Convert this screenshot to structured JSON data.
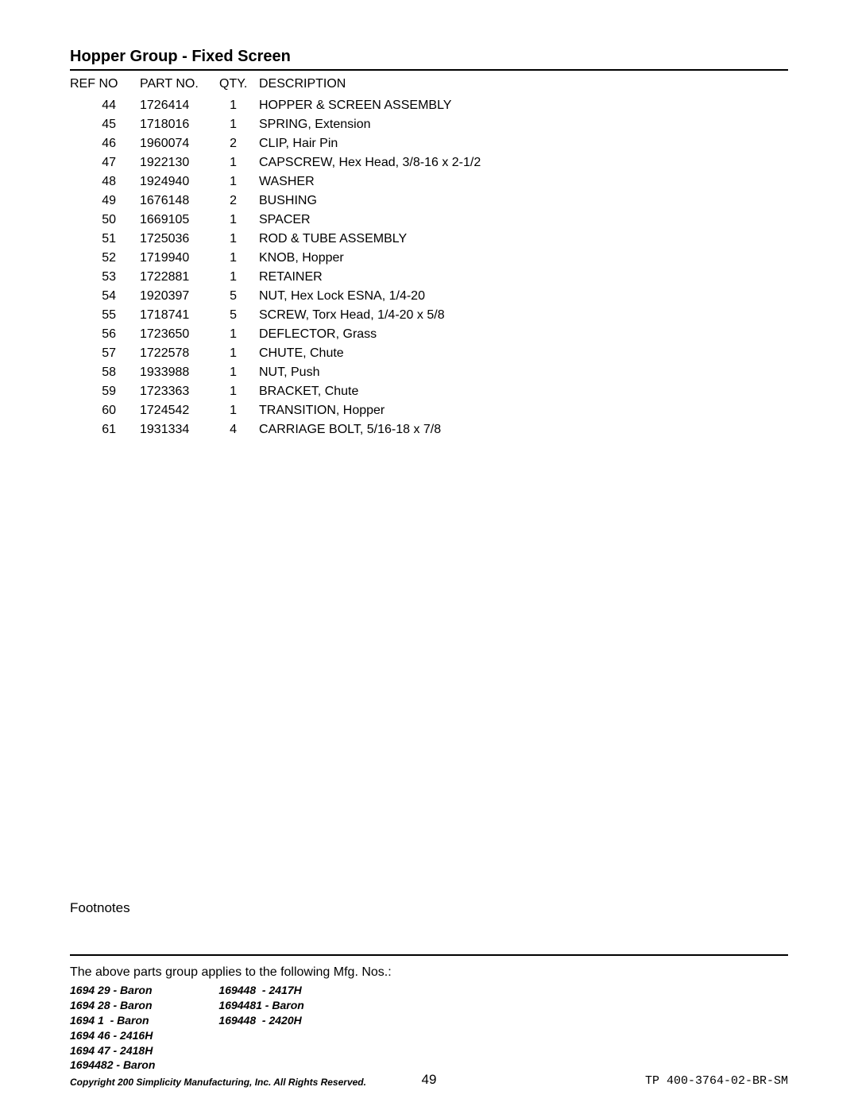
{
  "title": "Hopper Group - Fixed Screen",
  "headers": {
    "ref": "REF NO",
    "part": "PART NO.",
    "qty": "QTY.",
    "desc": "DESCRIPTION"
  },
  "rows": [
    {
      "ref": "44",
      "part": "1726414",
      "qty": "1",
      "desc": "HOPPER & SCREEN ASSEMBLY"
    },
    {
      "ref": "45",
      "part": "1718016",
      "qty": "1",
      "desc": "SPRING, Extension"
    },
    {
      "ref": "46",
      "part": "1960074",
      "qty": "2",
      "desc": "CLIP, Hair Pin"
    },
    {
      "ref": "47",
      "part": "1922130",
      "qty": "1",
      "desc": "CAPSCREW, Hex Head, 3/8-16 x 2-1/2"
    },
    {
      "ref": "48",
      "part": "1924940",
      "qty": "1",
      "desc": "WASHER"
    },
    {
      "ref": "49",
      "part": "1676148",
      "qty": "2",
      "desc": "BUSHING"
    },
    {
      "ref": "50",
      "part": "1669105",
      "qty": "1",
      "desc": "SPACER"
    },
    {
      "ref": "51",
      "part": "1725036",
      "qty": "1",
      "desc": "ROD & TUBE ASSEMBLY"
    },
    {
      "ref": "52",
      "part": "1719940",
      "qty": "1",
      "desc": "KNOB, Hopper"
    },
    {
      "ref": "53",
      "part": "1722881",
      "qty": "1",
      "desc": "RETAINER"
    },
    {
      "ref": "54",
      "part": "1920397",
      "qty": "5",
      "desc": "NUT, Hex Lock ESNA, 1/4-20"
    },
    {
      "ref": "55",
      "part": "1718741",
      "qty": "5",
      "desc": "SCREW, Torx Head, 1/4-20 x 5/8"
    },
    {
      "ref": "56",
      "part": "1723650",
      "qty": "1",
      "desc": "DEFLECTOR, Grass"
    },
    {
      "ref": "57",
      "part": "1722578",
      "qty": "1",
      "desc": "CHUTE, Chute"
    },
    {
      "ref": "58",
      "part": "1933988",
      "qty": "1",
      "desc": "NUT, Push"
    },
    {
      "ref": "59",
      "part": "1723363",
      "qty": "1",
      "desc": "BRACKET, Chute"
    },
    {
      "ref": "60",
      "part": "1724542",
      "qty": "1",
      "desc": "TRANSITION, Hopper"
    },
    {
      "ref": "61",
      "part": "1931334",
      "qty": "4",
      "desc": "CARRIAGE BOLT, 5/16-18 x 7/8"
    }
  ],
  "footnotes_label": "Footnotes",
  "applies_text": "The above parts group applies to the following Mfg. Nos.:",
  "mfg_left": [
    "1694 29 - Baron",
    "1694 28 - Baron",
    "1694 1  - Baron",
    "1694 46 - 2416H",
    "1694 47 - 2418H",
    "1694482 - Baron"
  ],
  "mfg_right": [
    "169448  - 2417H",
    "1694481 - Baron",
    "169448  - 2420H"
  ],
  "copyright": "Copyright 200   Simplicity Manufacturing, Inc. All Rights Reserved.",
  "page_number": "49",
  "doc_id": "TP 400-3764-02-BR-SM"
}
